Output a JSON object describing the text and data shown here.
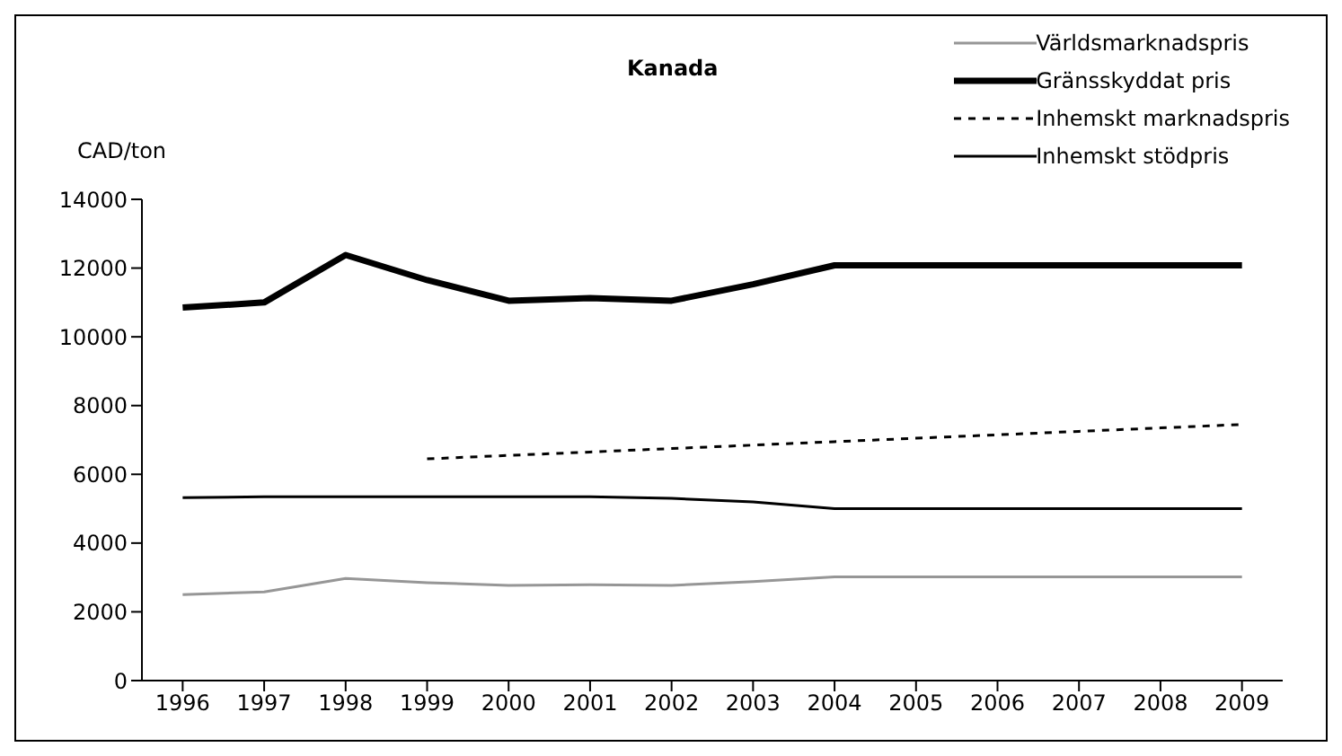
{
  "chart_data": {
    "type": "line",
    "title": "Kanada",
    "ylabel": "CAD/ton",
    "categories": [
      "1996",
      "1997",
      "1998",
      "1999",
      "2000",
      "2001",
      "2002",
      "2003",
      "2004",
      "2005",
      "2006",
      "2007",
      "2008",
      "2009"
    ],
    "series": [
      {
        "name": "Världsmarknadspris",
        "color": "#969696",
        "line_style": "solid",
        "values": [
          2500,
          2580,
          2970,
          2850,
          2770,
          2790,
          2770,
          2880,
          3020,
          3020,
          3020,
          3020,
          3020,
          3020
        ]
      },
      {
        "name": "Gränsskyddat pris",
        "color": "#000000",
        "line_style": "solid",
        "values": [
          10850,
          11000,
          12380,
          11650,
          11050,
          11130,
          11050,
          11530,
          12080,
          12080,
          12080,
          12080,
          12080,
          12080
        ]
      },
      {
        "name": "Inhemskt marknadspris",
        "color": "#000000",
        "line_style": "dashed",
        "values": [
          null,
          null,
          null,
          6450,
          6550,
          6650,
          6750,
          6850,
          6950,
          7050,
          7150,
          7250,
          7350,
          7450
        ]
      },
      {
        "name": "Inhemskt stödpris",
        "color": "#000000",
        "line_style": "solid",
        "values": [
          5320,
          5350,
          5350,
          5350,
          5350,
          5350,
          5300,
          5200,
          5000,
          5000,
          5000,
          5000,
          5000,
          5000
        ]
      }
    ],
    "ylim": [
      0,
      14000
    ],
    "yticks": [
      0,
      2000,
      4000,
      6000,
      8000,
      10000,
      12000,
      14000
    ],
    "grid": false,
    "legend": "top right",
    "marker": "none"
  }
}
